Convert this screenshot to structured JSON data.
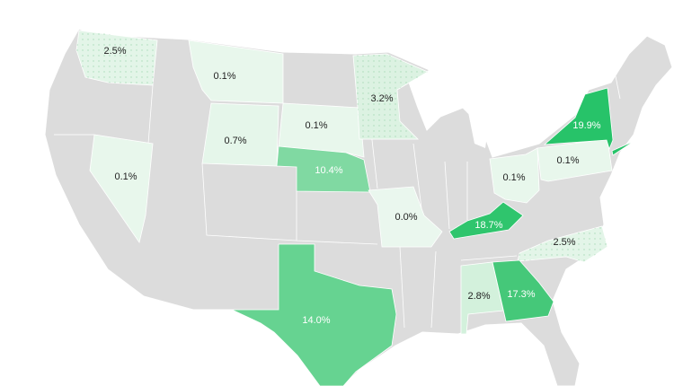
{
  "map": {
    "type": "choropleth",
    "region": "United States",
    "base_color": "#dcdcdc",
    "states": [
      {
        "state": "Washington",
        "value": "2.5%",
        "color": "#e3f5e8",
        "pattern": "dots"
      },
      {
        "state": "Montana",
        "value": "0.1%",
        "color": "#e8f7ec"
      },
      {
        "state": "Wyoming",
        "value": "0.7%",
        "color": "#e5f6ea"
      },
      {
        "state": "South Dakota",
        "value": "0.1%",
        "color": "#e8f7ec"
      },
      {
        "state": "Minnesota",
        "value": "3.2%",
        "color": "#dcf2e2",
        "pattern": "dots"
      },
      {
        "state": "Nebraska",
        "value": "10.4%",
        "color": "#80d9a2"
      },
      {
        "state": "Nevada",
        "value": "0.1%",
        "color": "#e8f7ec"
      },
      {
        "state": "Missouri",
        "value": "0.0%",
        "color": "#eaf7ee"
      },
      {
        "state": "Kentucky",
        "value": "18.7%",
        "color": "#2fc56d"
      },
      {
        "state": "Ohio",
        "value": "0.1%",
        "color": "#e8f7ec"
      },
      {
        "state": "Pennsylvania",
        "value": "0.1%",
        "color": "#e8f7ec"
      },
      {
        "state": "New York",
        "value": "19.9%",
        "color": "#27c369"
      },
      {
        "state": "North Carolina",
        "value": "2.5%",
        "color": "#e3f5e8",
        "pattern": "dots"
      },
      {
        "state": "Alabama",
        "value": "2.8%",
        "color": "#d3f1dc"
      },
      {
        "state": "Georgia",
        "value": "17.3%",
        "color": "#45c879"
      },
      {
        "state": "Texas",
        "value": "14.0%",
        "color": "#66d391"
      }
    ]
  }
}
